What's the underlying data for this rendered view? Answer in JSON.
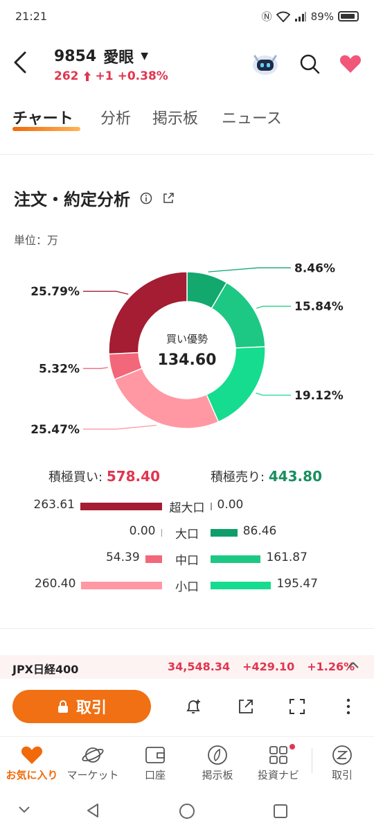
{
  "status": {
    "time": "21:21",
    "battery": "89%"
  },
  "header": {
    "code": "9854",
    "name": "愛眼",
    "price": "262",
    "change": "+1",
    "change_pct": "+0.38%"
  },
  "tabs": [
    "チャート",
    "分析",
    "掲示板",
    "ニュース"
  ],
  "section": {
    "title": "注文・約定分析",
    "unit": "単位：万"
  },
  "chart_data": {
    "type": "pie",
    "center_label": "買い優勢",
    "center_value": "134.60",
    "slices": [
      {
        "label": "8.46%",
        "value": 8.46,
        "color": "#12a86e"
      },
      {
        "label": "15.84%",
        "value": 15.84,
        "color": "#1cc883"
      },
      {
        "label": "19.12%",
        "value": 19.12,
        "color": "#15dc8f"
      },
      {
        "label": "25.47%",
        "value": 25.47,
        "color": "#ff98a3"
      },
      {
        "label": "5.32%",
        "value": 5.32,
        "color": "#f2677a"
      },
      {
        "label": "25.79%",
        "value": 25.79,
        "color": "#a41d32"
      }
    ]
  },
  "totals": {
    "buy_label": "積極買い:",
    "buy_value": "578.40",
    "sell_label": "積極売り:",
    "sell_value": "443.80"
  },
  "breakdown": [
    {
      "label": "超大口",
      "buy": "263.61",
      "sell": "0.00",
      "buy_num": 263.61,
      "sell_num": 0.0,
      "buy_color": "#a41d32",
      "sell_color": "#0f9e6a"
    },
    {
      "label": "大口",
      "buy": "0.00",
      "sell": "86.46",
      "buy_num": 0.0,
      "sell_num": 86.46,
      "buy_color": "#a41d32",
      "sell_color": "#0f9e6a"
    },
    {
      "label": "中口",
      "buy": "54.39",
      "sell": "161.87",
      "buy_num": 54.39,
      "sell_num": 161.87,
      "buy_color": "#f2677a",
      "sell_color": "#1cc883"
    },
    {
      "label": "小口",
      "buy": "260.40",
      "sell": "195.47",
      "buy_num": 260.4,
      "sell_num": 195.47,
      "buy_color": "#ff98a3",
      "sell_color": "#15dc8f"
    }
  ],
  "ticker": {
    "name": "JPX日経400",
    "value": "34,548.34",
    "change": "+429.10",
    "change_pct": "+1.26%"
  },
  "action": {
    "trade_label": "取引"
  },
  "bottom_nav": [
    {
      "label": "お気に入り",
      "icon": "heart-icon"
    },
    {
      "label": "マーケット",
      "icon": "planet-icon"
    },
    {
      "label": "口座",
      "icon": "wallet-icon"
    },
    {
      "label": "掲示板",
      "icon": "board-icon"
    },
    {
      "label": "投資ナビ",
      "icon": "grid-icon"
    },
    {
      "label": "取引",
      "icon": "trade-icon"
    }
  ],
  "colors": {
    "accent": "#f07013",
    "up": "#e0364f",
    "down": "#1a8f5e"
  }
}
